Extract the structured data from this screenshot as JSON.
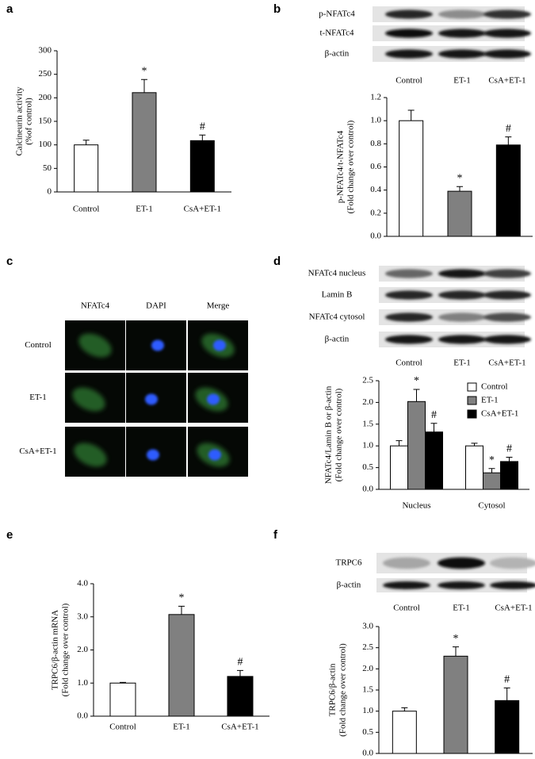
{
  "chart_data": [
    {
      "type": "bar",
      "panel": "a",
      "ylabel": [
        "Calcineurin activity",
        "(%of control)"
      ],
      "categories": [
        "Control",
        "ET-1",
        "CsA+ET-1"
      ],
      "values": [
        100,
        211,
        109
      ],
      "errors": [
        10,
        28,
        12
      ],
      "significance": [
        null,
        "*",
        "#"
      ],
      "colors": [
        "#ffffff",
        "#808080",
        "#000000"
      ],
      "ylim": [
        0,
        300
      ],
      "yticks": [
        0,
        50,
        100,
        150,
        200,
        250,
        300
      ]
    },
    {
      "type": "bar",
      "panel": "b",
      "ylabel": [
        "p-NFATc4/t-NFATc4",
        "(Fold change over control)"
      ],
      "values": [
        1.0,
        0.39,
        0.79
      ],
      "errors": [
        0.09,
        0.04,
        0.07
      ],
      "significance": [
        null,
        "*",
        "#"
      ],
      "colors": [
        "#ffffff",
        "#808080",
        "#000000"
      ],
      "ylim": [
        0,
        1.2
      ],
      "yticks": [
        {
          "value": 0,
          "label": "0.0"
        },
        0.2,
        0.4,
        0.6,
        0.8,
        {
          "value": 1,
          "label": "1.0"
        },
        1.2
      ]
    },
    {
      "type": "grouped-bar",
      "panel": "d",
      "ylabel": [
        "NFATc4/Lamin B or β-actin",
        "(Fold change over control)"
      ],
      "categories": [
        "Nucleus",
        "Cytosol"
      ],
      "series": [
        {
          "name": "Control",
          "color": "#ffffff",
          "values": [
            1.0,
            1.0
          ],
          "errors": [
            0.12,
            0.06
          ],
          "significance": [
            null,
            null
          ]
        },
        {
          "name": "ET-1",
          "color": "#808080",
          "values": [
            2.02,
            0.38
          ],
          "errors": [
            0.28,
            0.1
          ],
          "significance": [
            "*",
            "*"
          ]
        },
        {
          "name": "CsA+ET-1",
          "color": "#000000",
          "values": [
            1.32,
            0.64
          ],
          "errors": [
            0.2,
            0.1
          ],
          "significance": [
            "#",
            "#"
          ]
        }
      ],
      "legend": "top-right",
      "ylim": [
        0,
        2.5
      ],
      "yticks": [
        {
          "value": 0,
          "label": "0.0"
        },
        0.5,
        {
          "value": 1,
          "label": "1.0"
        },
        1.5,
        {
          "value": 2,
          "label": "2.0"
        },
        2.5
      ]
    },
    {
      "type": "bar",
      "panel": "e",
      "ylabel": [
        "TRPC6/β-actin mRNA",
        "(Fold change over control)"
      ],
      "categories": [
        "Control",
        "ET-1",
        "CsA+ET-1"
      ],
      "values": [
        1.0,
        3.07,
        1.2
      ],
      "errors": [
        0.02,
        0.25,
        0.18
      ],
      "significance": [
        null,
        "*",
        "#"
      ],
      "colors": [
        "#ffffff",
        "#808080",
        "#000000"
      ],
      "ylim": [
        0,
        4
      ],
      "yticks": [
        {
          "value": 0,
          "label": "0.0"
        },
        {
          "value": 1,
          "label": "1.0"
        },
        {
          "value": 2,
          "label": "2.0"
        },
        {
          "value": 3,
          "label": "3.0"
        },
        {
          "value": 4,
          "label": "4.0"
        }
      ]
    },
    {
      "type": "bar",
      "panel": "f",
      "ylabel": [
        "TRPC6/β-actin",
        "(Fold change over control)"
      ],
      "values": [
        1.0,
        2.3,
        1.25
      ],
      "errors": [
        0.08,
        0.22,
        0.3
      ],
      "significance": [
        null,
        "*",
        "#"
      ],
      "colors": [
        "#ffffff",
        "#808080",
        "#000000"
      ],
      "ylim": [
        0,
        3
      ],
      "yticks": [
        {
          "value": 0,
          "label": "0.0"
        },
        0.5,
        {
          "value": 1,
          "label": "1.0"
        },
        1.5,
        {
          "value": 2,
          "label": "2.0"
        },
        2.5,
        {
          "value": 3,
          "label": "3.0"
        }
      ]
    }
  ],
  "blots": [
    {
      "bands": [
        "p-NFATc4",
        "t-NFATc4",
        "β-actin"
      ],
      "lanes": [
        "Control",
        "ET-1",
        "CsA+ET-1"
      ]
    },
    {
      "bands": [
        "NFATc4 nucleus",
        "Lamin B",
        "NFATc4 cytosol",
        "β-actin"
      ],
      "lanes": [
        "Control",
        "ET-1",
        "CsA+ET-1"
      ]
    },
    {
      "bands": [
        "TRPC6",
        "β-actin"
      ],
      "lanes": [
        "Control",
        "ET-1",
        "CsA+ET-1"
      ]
    }
  ],
  "microscopy": {
    "panel": "c",
    "columns": [
      "NFATc4",
      "DAPI",
      "Merge"
    ],
    "rows": [
      "Control",
      "ET-1",
      "CsA+ET-1"
    ]
  }
}
